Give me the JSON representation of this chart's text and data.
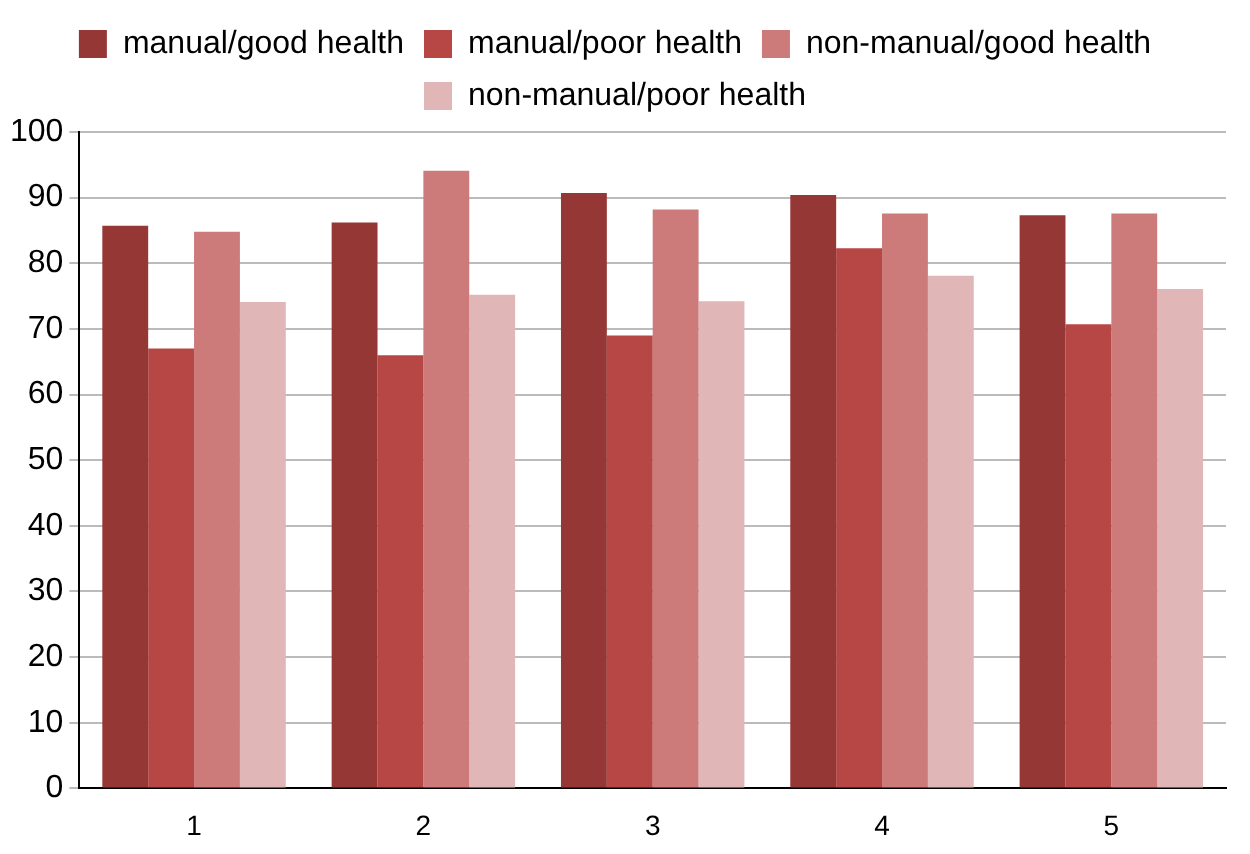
{
  "chart_data": {
    "type": "bar",
    "categories": [
      "1",
      "2",
      "3",
      "4",
      "5"
    ],
    "series": [
      {
        "name": "manual/good health",
        "color": "#953735",
        "values": [
          85.7,
          86.2,
          90.7,
          90.4,
          87.3
        ]
      },
      {
        "name": "manual/poor health",
        "color": "#b64745",
        "values": [
          67,
          66,
          69,
          82.3,
          70.7
        ]
      },
      {
        "name": "non-manual/good health",
        "color": "#cc7b7a",
        "values": [
          84.8,
          94.1,
          88.2,
          87.6,
          87.6
        ]
      },
      {
        "name": "non-manual/poor health",
        "color": "#e0b6b6",
        "values": [
          74.1,
          75.2,
          74.2,
          78.1,
          76.1
        ]
      }
    ],
    "ylim": [
      0,
      100
    ],
    "yticks": [
      0,
      10,
      20,
      30,
      40,
      50,
      60,
      70,
      80,
      90,
      100
    ],
    "grid": "y",
    "legend": "top"
  }
}
